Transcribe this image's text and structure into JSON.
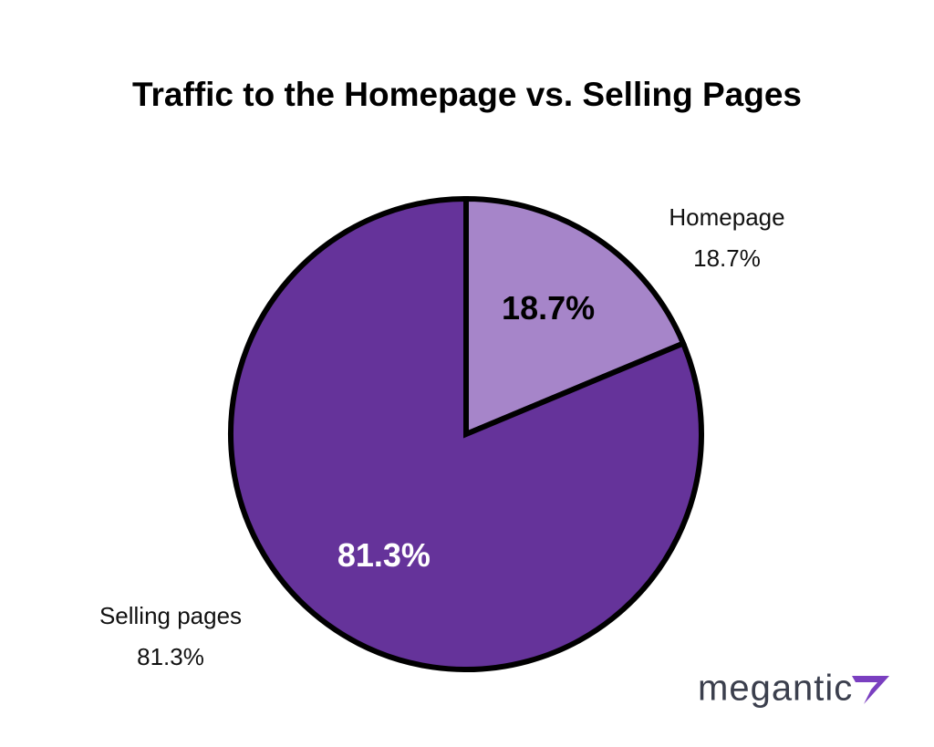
{
  "chart_data": {
    "type": "pie",
    "title": "Traffic to the Homepage vs. Selling Pages",
    "categories": [
      "Homepage",
      "Selling pages"
    ],
    "values": [
      18.7,
      81.3
    ],
    "value_labels": [
      "18.7%",
      "81.3%"
    ],
    "colors": [
      "#a685c9",
      "#65339a"
    ]
  },
  "brand": "megantic"
}
